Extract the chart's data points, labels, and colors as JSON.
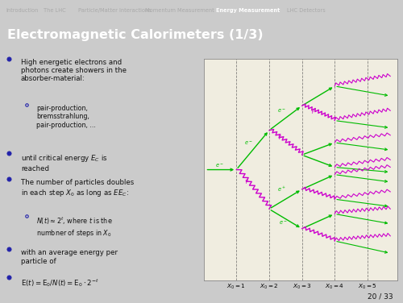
{
  "bg_color": "#c8c8c8",
  "nav_bg": "#1a1a4a",
  "title_bar_bg": "#3535a0",
  "title_text": "Electromagnetic Calorimeters (1/3)",
  "nav_items": [
    "Introduction",
    "The LHC",
    "Particle/Matter Interactions",
    "Momentum Measurement",
    "Energy Measurement",
    "LHC Detectors"
  ],
  "nav_bold": "Energy Measurement",
  "nav_color": "#aaaaaa",
  "title_color": "#ffffff",
  "body_bg": "#cbcbcb",
  "bullet_color": "#2222aa",
  "text_color": "#111111",
  "page_num": "20 / 33",
  "diagram": {
    "x_labels": [
      "$X_0=1$",
      "$X_0=2$",
      "$X_0=3$",
      "$X_0=4$",
      "$X_0=5$"
    ],
    "x_positions": [
      1,
      2,
      3,
      4,
      5
    ],
    "electron_color": "#00bb00",
    "photon_color": "#cc00cc",
    "axis_bg": "#f0ede0",
    "border_color": "#888888"
  }
}
